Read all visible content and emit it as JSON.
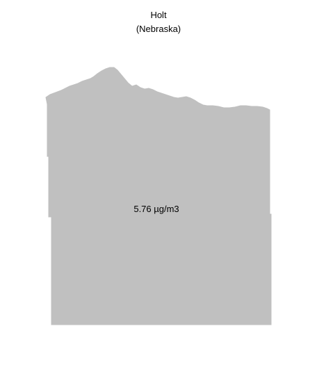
{
  "map": {
    "title_line1": "Holt",
    "title_line2": "(Nebraska)",
    "value_label": "5.76 µg/m3",
    "fill_color": "#c0c0c0"
  }
}
